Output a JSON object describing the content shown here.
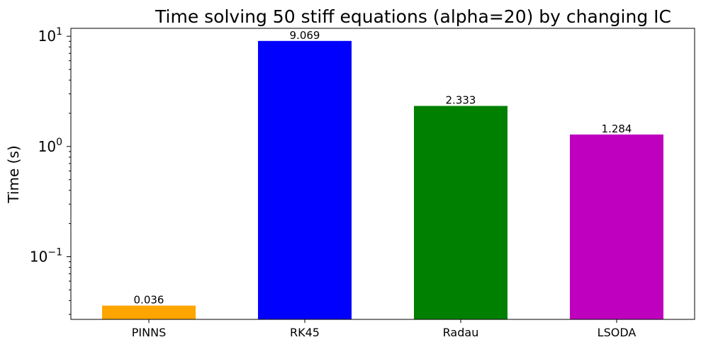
{
  "chart_data": {
    "type": "bar",
    "title": "Time solving 50 stiff equations (alpha=20) by changing IC",
    "xlabel": "",
    "ylabel": "Time (s)",
    "yscale": "log",
    "ylim": [
      0.027,
      11.8
    ],
    "categories": [
      "PINNS",
      "RK45",
      "Radau",
      "LSODA"
    ],
    "values": [
      0.036,
      9.069,
      2.333,
      1.284
    ],
    "data_labels": [
      "0.036",
      "9.069",
      "2.333",
      "1.284"
    ],
    "colors": [
      "#FFA500",
      "#0000FF",
      "#008000",
      "#BF00BF"
    ],
    "major_ticks": [
      {
        "value": 0.1,
        "base": "10",
        "exp": "−1"
      },
      {
        "value": 1,
        "base": "10",
        "exp": "0"
      },
      {
        "value": 10,
        "base": "10",
        "exp": "1"
      }
    ],
    "grid": false,
    "legend": "none"
  }
}
